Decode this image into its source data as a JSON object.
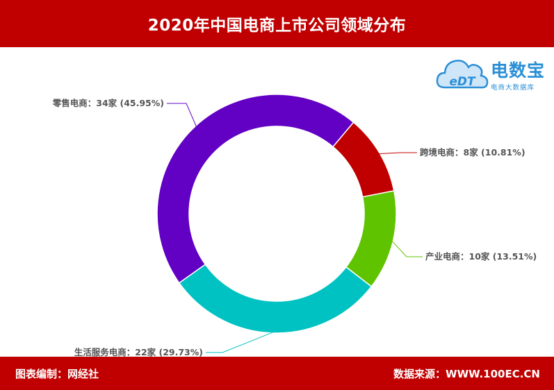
{
  "header": {
    "title": "2020年中国电商上市公司领域分布"
  },
  "logo": {
    "name": "电数宝",
    "subtitle": "电商大数据库",
    "mark": "eDT"
  },
  "footer": {
    "left": "图表编制：网经社",
    "right": "数据来源：WWW.100EC.CN"
  },
  "colors": {
    "brand": "#c00000",
    "logo": "#2b8fd6"
  },
  "chart_data": {
    "type": "pie",
    "title": "2020年中国电商上市公司领域分布",
    "slices": [
      {
        "name": "跨境电商",
        "value": 8,
        "percent": "10.81%",
        "color": "#c00000",
        "label": "跨境电商：8家 (10.81%)"
      },
      {
        "name": "产业电商",
        "value": 10,
        "percent": "13.51%",
        "color": "#5fc300",
        "label": "产业电商：10家 (13.51%)"
      },
      {
        "name": "生活服务电商",
        "value": 22,
        "percent": "29.73%",
        "color": "#00c2c2",
        "label": "生活服务电商：22家 (29.73%)"
      },
      {
        "name": "零售电商",
        "value": 34,
        "percent": "45.95%",
        "color": "#6200c4",
        "label": "零售电商：34家 (45.95%)"
      }
    ]
  }
}
